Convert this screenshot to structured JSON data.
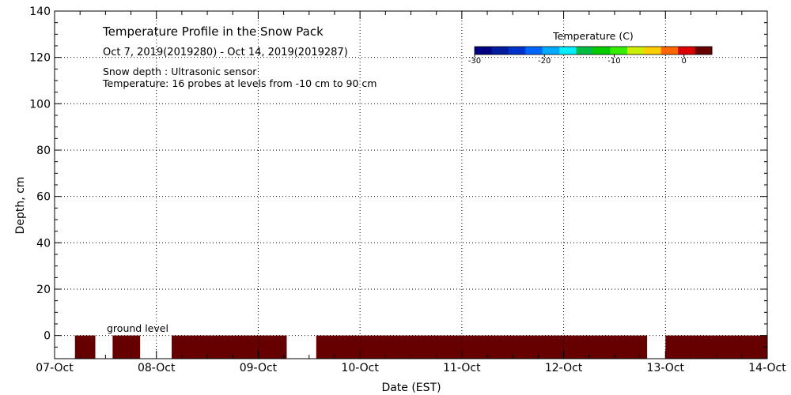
{
  "chart_data": {
    "type": "heatmap",
    "title": "Temperature Profile in the Snow Pack",
    "subtitle": "Oct  7, 2019(2019280) - Oct 14, 2019(2019287)",
    "notes": [
      "Snow depth : Ultrasonic sensor",
      "Temperature: 16 probes at levels from -10 cm to 90 cm"
    ],
    "xlabel": "Date (EST)",
    "ylabel": "Depth, cm",
    "x_categories": [
      "07-Oct",
      "08-Oct",
      "09-Oct",
      "10-Oct",
      "11-Oct",
      "12-Oct",
      "13-Oct",
      "14-Oct"
    ],
    "xlim": [
      0,
      7
    ],
    "ylim": [
      -10,
      140
    ],
    "y_ticks": [
      0,
      20,
      40,
      60,
      80,
      100,
      120,
      140
    ],
    "grid": true,
    "ground_label": "ground level",
    "colorbar": {
      "title": "Temperature (C)",
      "ticks": [
        -30,
        -20,
        -10,
        0
      ],
      "range": [
        -30,
        4
      ],
      "colors": [
        "#000080",
        "#001aa0",
        "#0033cc",
        "#0066ff",
        "#00aaff",
        "#00eeff",
        "#00bb44",
        "#00cc00",
        "#33ee00",
        "#ccee00",
        "#ffcc00",
        "#ff6600",
        "#dd0000",
        "#660000"
      ]
    },
    "data_fill_color": "#660000",
    "data_depth_range": [
      -10,
      0
    ],
    "data_gaps_days": [
      [
        0.0,
        0.2
      ],
      [
        0.4,
        0.57
      ],
      [
        0.84,
        1.15
      ],
      [
        2.28,
        2.57
      ],
      [
        5.82,
        6.0
      ]
    ],
    "data_value_c": 3
  }
}
